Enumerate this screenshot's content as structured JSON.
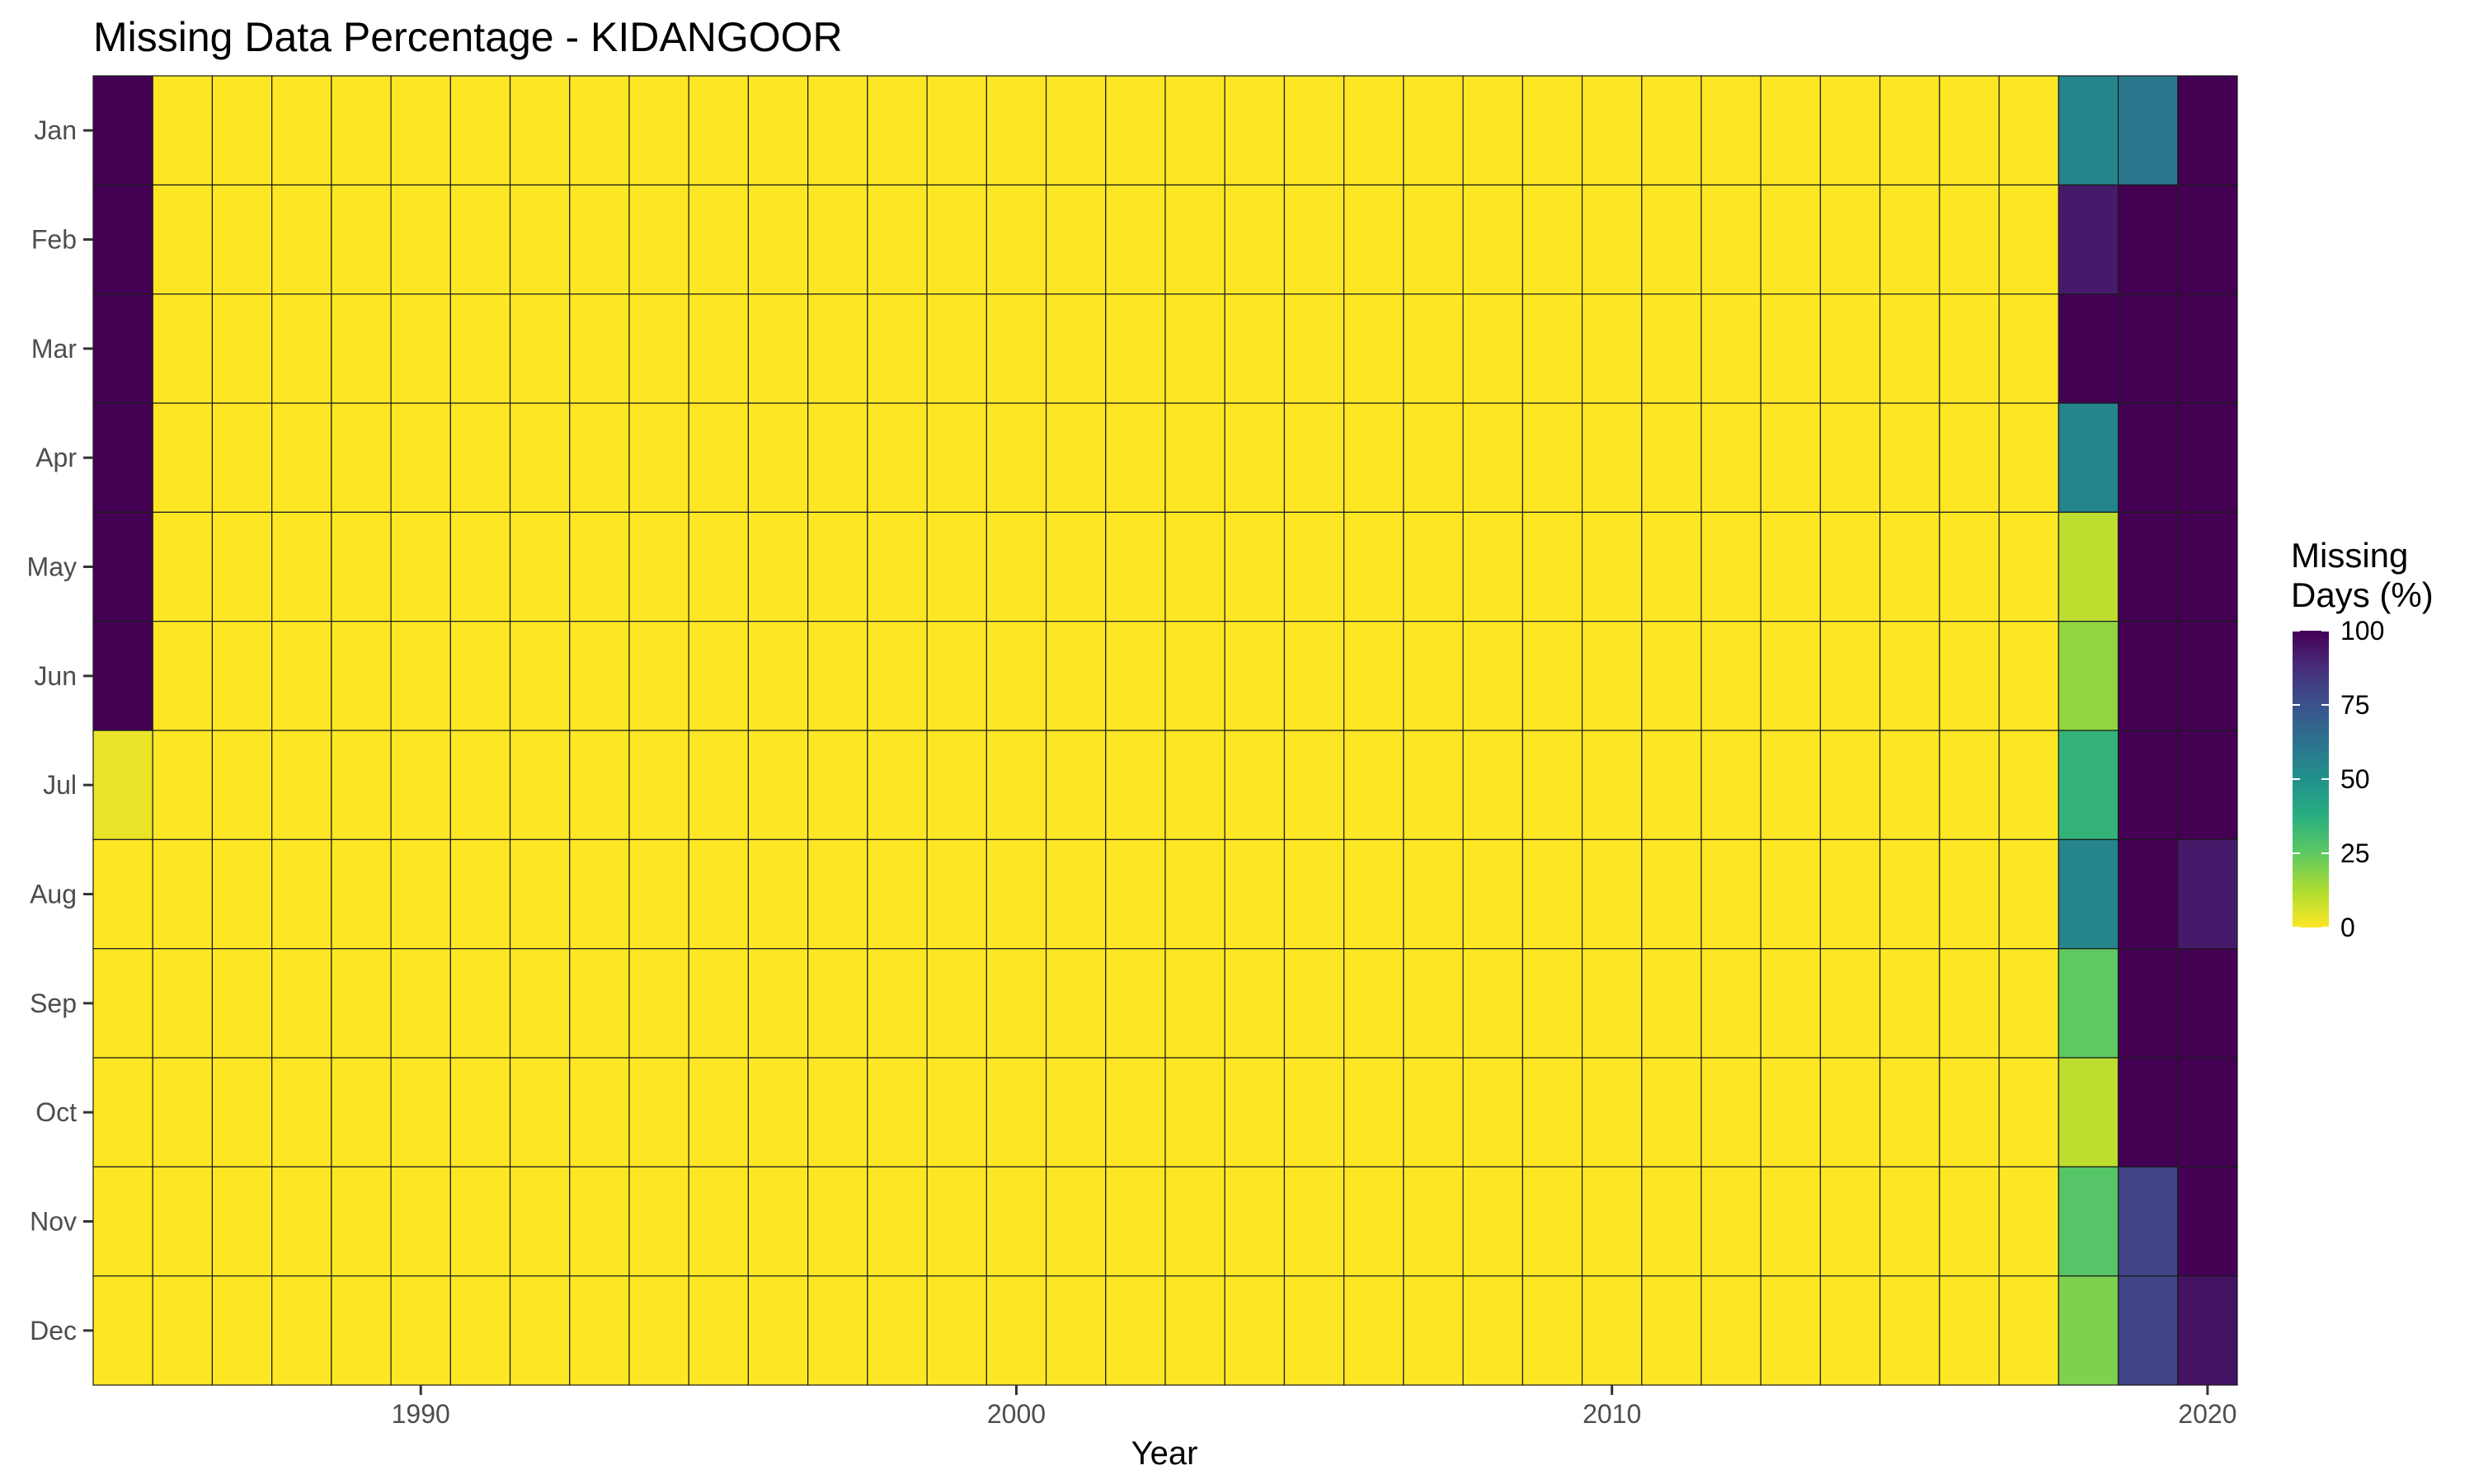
{
  "chart_data": {
    "type": "heatmap",
    "title": "Missing Data Percentage - KIDANGOOR",
    "xlabel": "Year",
    "ylabel": "",
    "x_start_year": 1985,
    "x_end_year": 2020,
    "x_ticks": [
      1990,
      2000,
      2010,
      2020
    ],
    "months": [
      "Jan",
      "Feb",
      "Mar",
      "Apr",
      "May",
      "Jun",
      "Jul",
      "Aug",
      "Sep",
      "Oct",
      "Nov",
      "Dec"
    ],
    "legend": {
      "title_line1": "Missing",
      "title_line2": "Days (%)",
      "ticks": [
        100,
        75,
        50,
        25,
        0
      ],
      "range": [
        0,
        100
      ],
      "placement": "right"
    },
    "colorscale": "viridis-reversed",
    "grid": false,
    "default_value": 0,
    "cells": [
      {
        "year": 1985,
        "month": "Jan",
        "value": 100
      },
      {
        "year": 1985,
        "month": "Feb",
        "value": 100
      },
      {
        "year": 1985,
        "month": "Mar",
        "value": 100
      },
      {
        "year": 1985,
        "month": "Apr",
        "value": 100
      },
      {
        "year": 1985,
        "month": "May",
        "value": 100
      },
      {
        "year": 1985,
        "month": "Jun",
        "value": 100
      },
      {
        "year": 1985,
        "month": "Jul",
        "value": 3
      },
      {
        "year": 2018,
        "month": "Jan",
        "value": 55
      },
      {
        "year": 2018,
        "month": "Feb",
        "value": 93
      },
      {
        "year": 2018,
        "month": "Mar",
        "value": 100
      },
      {
        "year": 2018,
        "month": "Apr",
        "value": 55
      },
      {
        "year": 2018,
        "month": "May",
        "value": 10
      },
      {
        "year": 2018,
        "month": "Jun",
        "value": 17
      },
      {
        "year": 2018,
        "month": "Jul",
        "value": 35
      },
      {
        "year": 2018,
        "month": "Aug",
        "value": 55
      },
      {
        "year": 2018,
        "month": "Sep",
        "value": 25
      },
      {
        "year": 2018,
        "month": "Oct",
        "value": 10
      },
      {
        "year": 2018,
        "month": "Nov",
        "value": 27
      },
      {
        "year": 2018,
        "month": "Dec",
        "value": 20
      },
      {
        "year": 2019,
        "month": "Jan",
        "value": 60
      },
      {
        "year": 2019,
        "month": "Feb",
        "value": 100
      },
      {
        "year": 2019,
        "month": "Mar",
        "value": 100
      },
      {
        "year": 2019,
        "month": "Apr",
        "value": 100
      },
      {
        "year": 2019,
        "month": "May",
        "value": 100
      },
      {
        "year": 2019,
        "month": "Jun",
        "value": 100
      },
      {
        "year": 2019,
        "month": "Jul",
        "value": 100
      },
      {
        "year": 2019,
        "month": "Aug",
        "value": 100
      },
      {
        "year": 2019,
        "month": "Sep",
        "value": 100
      },
      {
        "year": 2019,
        "month": "Oct",
        "value": 100
      },
      {
        "year": 2019,
        "month": "Nov",
        "value": 80
      },
      {
        "year": 2019,
        "month": "Dec",
        "value": 80
      },
      {
        "year": 2020,
        "month": "Jan",
        "value": 100
      },
      {
        "year": 2020,
        "month": "Feb",
        "value": 100
      },
      {
        "year": 2020,
        "month": "Mar",
        "value": 100
      },
      {
        "year": 2020,
        "month": "Apr",
        "value": 100
      },
      {
        "year": 2020,
        "month": "May",
        "value": 100
      },
      {
        "year": 2020,
        "month": "Jun",
        "value": 100
      },
      {
        "year": 2020,
        "month": "Jul",
        "value": 100
      },
      {
        "year": 2020,
        "month": "Aug",
        "value": 93
      },
      {
        "year": 2020,
        "month": "Sep",
        "value": 100
      },
      {
        "year": 2020,
        "month": "Oct",
        "value": 100
      },
      {
        "year": 2020,
        "month": "Nov",
        "value": 100
      },
      {
        "year": 2020,
        "month": "Dec",
        "value": 95
      }
    ]
  }
}
